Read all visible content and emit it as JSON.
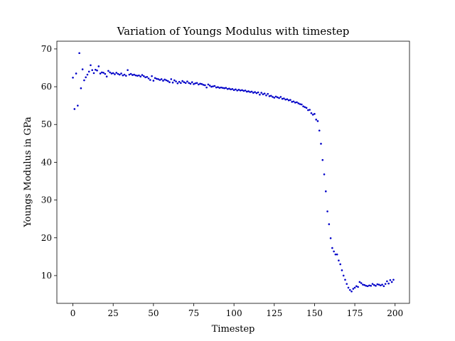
{
  "chart_data": {
    "type": "scatter",
    "title": "Variation of Youngs Modulus with timestep",
    "xlabel": "Timestep",
    "ylabel": "Youngs Modulus in GPa",
    "color": "#0000c8",
    "grid": false,
    "xlim": [
      -9.95,
      208.95
    ],
    "xticks": [
      0,
      25,
      50,
      75,
      100,
      125,
      150,
      175,
      200
    ],
    "ylim": [
      2.65,
      72.05
    ],
    "yticks": [
      10,
      20,
      30,
      40,
      50,
      60,
      70
    ],
    "x": [
      0,
      1,
      2,
      3,
      4,
      5,
      6,
      7,
      8,
      9,
      10,
      11,
      12,
      13,
      14,
      15,
      16,
      17,
      18,
      19,
      20,
      21,
      22,
      23,
      24,
      25,
      26,
      27,
      28,
      29,
      30,
      31,
      32,
      33,
      34,
      35,
      36,
      37,
      38,
      39,
      40,
      41,
      42,
      43,
      44,
      45,
      46,
      47,
      48,
      49,
      50,
      51,
      52,
      53,
      54,
      55,
      56,
      57,
      58,
      59,
      60,
      61,
      62,
      63,
      64,
      65,
      66,
      67,
      68,
      69,
      70,
      71,
      72,
      73,
      74,
      75,
      76,
      77,
      78,
      79,
      80,
      81,
      82,
      83,
      84,
      85,
      86,
      87,
      88,
      89,
      90,
      91,
      92,
      93,
      94,
      95,
      96,
      97,
      98,
      99,
      100,
      101,
      102,
      103,
      104,
      105,
      106,
      107,
      108,
      109,
      110,
      111,
      112,
      113,
      114,
      115,
      116,
      117,
      118,
      119,
      120,
      121,
      122,
      123,
      124,
      125,
      126,
      127,
      128,
      129,
      130,
      131,
      132,
      133,
      134,
      135,
      136,
      137,
      138,
      139,
      140,
      141,
      142,
      143,
      144,
      145,
      146,
      147,
      148,
      149,
      150,
      151,
      152,
      153,
      154,
      155,
      156,
      157,
      158,
      159,
      160,
      161,
      162,
      163,
      164,
      165,
      166,
      167,
      168,
      169,
      170,
      171,
      172,
      173,
      174,
      175,
      176,
      177,
      178,
      179,
      180,
      181,
      182,
      183,
      184,
      185,
      186,
      187,
      188,
      189,
      190,
      191,
      192,
      193,
      194,
      195,
      196,
      197,
      198,
      199
    ],
    "values": [
      62.4,
      54.1,
      63.5,
      55.0,
      68.9,
      59.6,
      64.6,
      61.7,
      62.5,
      63.2,
      64.0,
      65.7,
      64.4,
      63.6,
      64.5,
      64.3,
      65.4,
      63.5,
      63.8,
      63.7,
      63.4,
      62.7,
      64.2,
      63.8,
      63.5,
      63.6,
      63.3,
      63.7,
      63.4,
      63.2,
      63.5,
      63.0,
      63.2,
      62.9,
      64.4,
      63.2,
      63.4,
      63.1,
      63.2,
      63.0,
      62.9,
      63.0,
      62.7,
      63.1,
      62.8,
      62.5,
      62.6,
      62.2,
      61.8,
      62.8,
      61.6,
      62.3,
      62.1,
      62.0,
      61.8,
      62.0,
      61.6,
      61.9,
      61.7,
      61.5,
      61.2,
      62.0,
      61.1,
      61.7,
      61.4,
      60.9,
      61.3,
      61.0,
      61.5,
      61.2,
      61.0,
      61.4,
      61.0,
      60.8,
      61.2,
      60.7,
      60.9,
      61.0,
      60.6,
      60.8,
      60.7,
      60.5,
      60.4,
      59.8,
      60.6,
      60.3,
      60.0,
      60.1,
      60.2,
      59.8,
      59.9,
      59.7,
      59.8,
      59.7,
      59.6,
      59.7,
      59.4,
      59.5,
      59.3,
      59.4,
      59.1,
      59.3,
      59.0,
      59.2,
      59.0,
      59.1,
      58.9,
      59.0,
      58.7,
      58.8,
      58.6,
      58.7,
      58.4,
      58.6,
      58.3,
      58.5,
      57.9,
      58.4,
      58.0,
      58.2,
      57.7,
      58.1,
      57.5,
      57.6,
      57.3,
      57.1,
      57.4,
      57.2,
      57.0,
      57.3,
      56.8,
      56.9,
      56.6,
      56.7,
      56.4,
      56.5,
      56.0,
      56.1,
      55.8,
      55.9,
      55.6,
      55.4,
      55.3,
      54.8,
      54.6,
      54.4,
      53.8,
      53.9,
      53.0,
      52.6,
      52.8,
      51.3,
      50.9,
      48.4,
      44.9,
      40.6,
      36.8,
      32.3,
      27.0,
      23.6,
      19.9,
      17.3,
      16.4,
      15.6,
      15.6,
      14.0,
      13.0,
      11.4,
      10.0,
      8.9,
      7.8,
      6.8,
      6.2,
      5.8,
      6.5,
      6.8,
      7.2,
      7.0,
      8.3,
      8.0,
      7.6,
      7.5,
      7.3,
      7.2,
      7.4,
      7.3,
      7.8,
      7.5,
      7.3,
      7.7,
      7.6,
      7.4,
      7.6,
      7.2,
      7.8,
      8.5,
      7.9,
      8.8,
      8.3,
      8.9
    ]
  }
}
